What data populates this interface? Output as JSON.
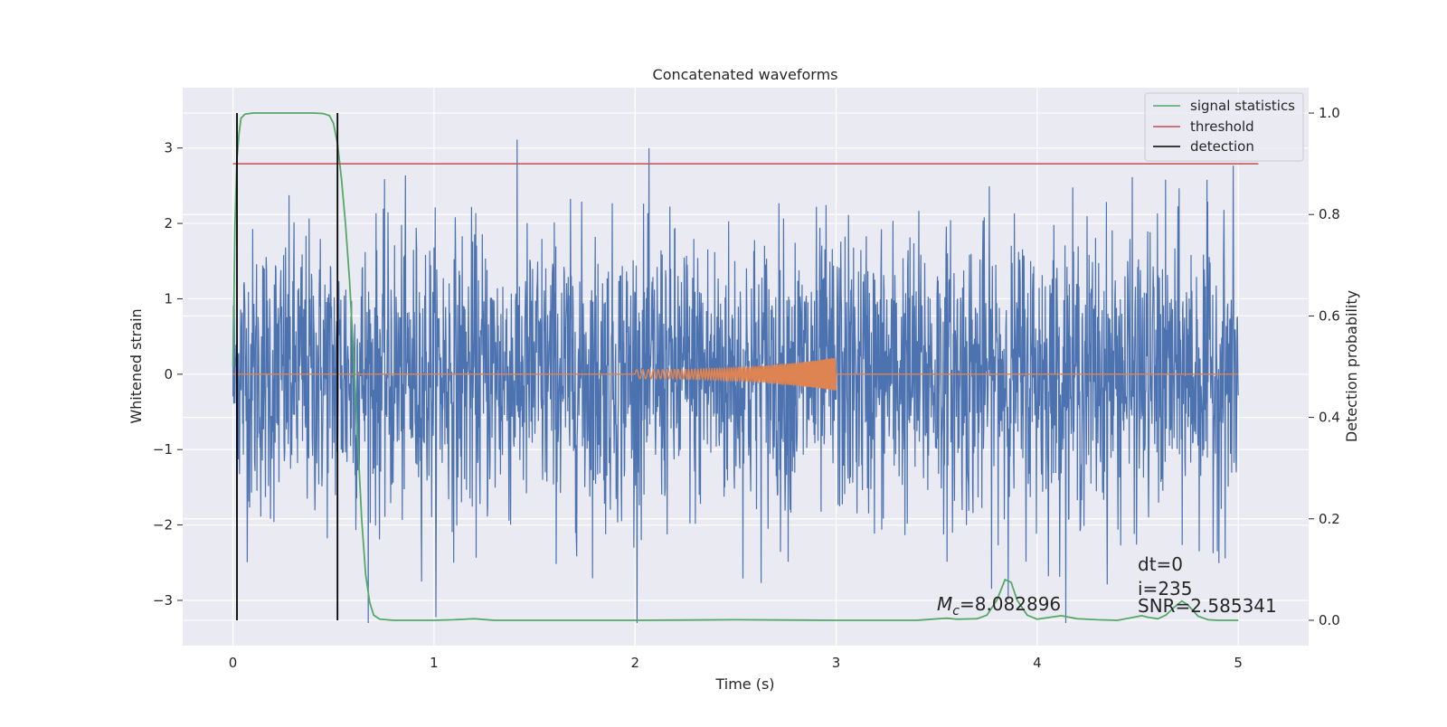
{
  "chart_data": {
    "type": "line",
    "title": "Concatenated waveforms",
    "xlabel": "Time (s)",
    "ylabel": "Whitened strain",
    "y2label": "Detection probability",
    "xlim": [
      -0.25,
      5.35
    ],
    "ylim": [
      -3.6,
      3.8
    ],
    "y2lim": [
      -0.05,
      1.05
    ],
    "x_ticks": [
      0,
      1,
      2,
      3,
      4,
      5
    ],
    "x_tick_labels": [
      "0",
      "1",
      "2",
      "3",
      "4",
      "5"
    ],
    "y_ticks": [
      -3,
      -2,
      -1,
      0,
      1,
      2,
      3
    ],
    "y_tick_labels": [
      "−3",
      "−2",
      "−1",
      "0",
      "1",
      "2",
      "3"
    ],
    "y2_ticks": [
      0.0,
      0.2,
      0.4,
      0.6,
      0.8,
      1.0
    ],
    "y2_tick_labels": [
      "0.0",
      "0.2",
      "0.4",
      "0.6",
      "0.8",
      "1.0"
    ],
    "grid": true,
    "legend_position": "top-right",
    "colors": {
      "noise": "#4c72b0",
      "waveform": "#dd8452",
      "signal_statistics": "#55a868",
      "threshold": "#c44e52",
      "detection": "#000000",
      "plot_background": "#eaeaf2",
      "grid": "#ffffff"
    },
    "series": [
      {
        "name": "signal statistics",
        "axis": "right",
        "color": "#55a868",
        "points": [
          [
            0.0,
            0.5
          ],
          [
            0.01,
            0.78
          ],
          [
            0.02,
            0.91
          ],
          [
            0.03,
            0.96
          ],
          [
            0.04,
            0.99
          ],
          [
            0.06,
            0.998
          ],
          [
            0.1,
            1.0
          ],
          [
            0.2,
            1.0
          ],
          [
            0.3,
            1.0
          ],
          [
            0.4,
            1.0
          ],
          [
            0.45,
            0.999
          ],
          [
            0.48,
            0.995
          ],
          [
            0.5,
            0.98
          ],
          [
            0.52,
            0.94
          ],
          [
            0.54,
            0.87
          ],
          [
            0.56,
            0.78
          ],
          [
            0.58,
            0.67
          ],
          [
            0.6,
            0.52
          ],
          [
            0.62,
            0.36
          ],
          [
            0.64,
            0.2
          ],
          [
            0.66,
            0.09
          ],
          [
            0.68,
            0.035
          ],
          [
            0.7,
            0.01
          ],
          [
            0.73,
            0.002
          ],
          [
            0.8,
            0.0
          ],
          [
            1.0,
            0.0
          ],
          [
            1.1,
            0.001
          ],
          [
            1.2,
            0.003
          ],
          [
            1.3,
            0.0
          ],
          [
            1.5,
            0.0
          ],
          [
            2.0,
            0.0
          ],
          [
            2.5,
            0.001
          ],
          [
            3.0,
            0.0
          ],
          [
            3.4,
            0.0
          ],
          [
            3.55,
            0.004
          ],
          [
            3.6,
            0.002
          ],
          [
            3.7,
            0.003
          ],
          [
            3.75,
            0.01
          ],
          [
            3.8,
            0.04
          ],
          [
            3.84,
            0.08
          ],
          [
            3.87,
            0.075
          ],
          [
            3.9,
            0.04
          ],
          [
            3.95,
            0.01
          ],
          [
            4.0,
            0.002
          ],
          [
            4.05,
            0.005
          ],
          [
            4.12,
            0.009
          ],
          [
            4.2,
            0.003
          ],
          [
            4.3,
            0.001
          ],
          [
            4.4,
            0.0
          ],
          [
            4.48,
            0.006
          ],
          [
            4.52,
            0.009
          ],
          [
            4.55,
            0.006
          ],
          [
            4.6,
            0.003
          ],
          [
            4.64,
            0.01
          ],
          [
            4.68,
            0.025
          ],
          [
            4.72,
            0.038
          ],
          [
            4.75,
            0.03
          ],
          [
            4.8,
            0.008
          ],
          [
            4.85,
            0.001
          ],
          [
            4.9,
            0.0
          ],
          [
            5.0,
            0.0
          ]
        ]
      },
      {
        "name": "threshold",
        "axis": "right",
        "color": "#c44e52",
        "x": [
          0.0,
          5.1
        ],
        "y": [
          0.9,
          0.9
        ]
      },
      {
        "name": "detection",
        "axis": "right",
        "color": "#000000",
        "x": [
          0.02,
          0.52
        ],
        "y_range": [
          0.0,
          1.0
        ]
      }
    ],
    "noise_series": {
      "x_range": [
        0.0,
        5.0
      ],
      "y_range": [
        -3.3,
        3.4
      ],
      "axis": "left",
      "color": "#4c72b0"
    },
    "waveform_series": {
      "x_range": [
        2.0,
        3.0
      ],
      "amplitude_range": [
        0.06,
        0.22
      ],
      "axis": "left",
      "color": "#dd8452"
    },
    "annotations": {
      "mc_label": "M",
      "mc_sub": "c",
      "mc_value": "=8.082896",
      "dt": "dt=0",
      "i": "i=235",
      "snr": "SNR=2.585341"
    }
  }
}
